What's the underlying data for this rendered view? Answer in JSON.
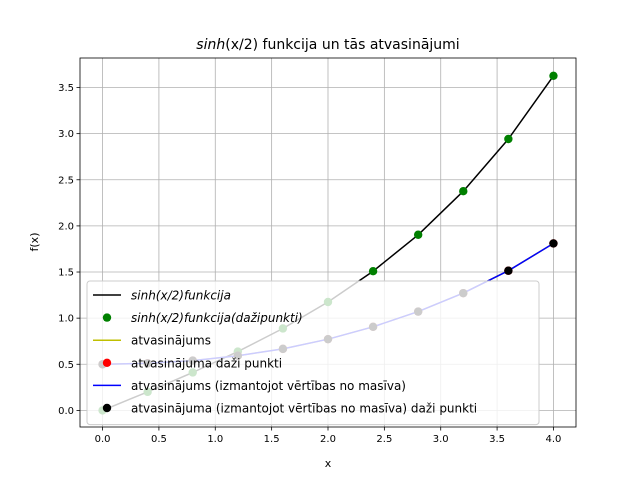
{
  "chart_data": {
    "type": "line",
    "title": {
      "func": "sinh",
      "arg": "(x/2)",
      "rest": " funkcija un tās atvasinājumi"
    },
    "xlabel": "x",
    "ylabel": "f(x)",
    "xlim": [
      -0.2,
      4.2
    ],
    "ylim": [
      -0.18,
      3.82
    ],
    "xticks": [
      "0.0",
      "0.5",
      "1.0",
      "1.5",
      "2.0",
      "2.5",
      "3.0",
      "3.5",
      "4.0"
    ],
    "yticks": [
      "0.0",
      "0.5",
      "1.0",
      "1.5",
      "2.0",
      "2.5",
      "3.0",
      "3.5"
    ],
    "grid": true,
    "legend_position": "lower-left",
    "colors": {
      "function": "#000000",
      "function_points": "#008000",
      "derivative": "#bfbf00",
      "derivative_points": "#ff0000",
      "array_derivative": "#0000ff",
      "array_derivative_points": "#000000"
    },
    "series": [
      {
        "key": "function",
        "kind": "line",
        "x": [
          0,
          0.4,
          0.8,
          1.2,
          1.6,
          2.0,
          2.4,
          2.8,
          3.2,
          3.6,
          4.0
        ],
        "y": [
          0,
          0.201,
          0.411,
          0.637,
          0.888,
          1.175,
          1.509,
          1.904,
          2.376,
          2.942,
          3.627
        ]
      },
      {
        "key": "function_points",
        "kind": "points",
        "x": [
          0,
          0.4,
          0.8,
          1.2,
          1.6,
          2.0,
          2.4,
          2.8,
          3.2,
          3.6,
          4.0
        ],
        "y": [
          0,
          0.201,
          0.411,
          0.637,
          0.888,
          1.175,
          1.509,
          1.904,
          2.376,
          2.942,
          3.627
        ]
      },
      {
        "key": "derivative",
        "kind": "line",
        "x": [
          0,
          0.4,
          0.8,
          1.2,
          1.6,
          2.0,
          2.4,
          2.8,
          3.2,
          3.6,
          4.0
        ],
        "y": [
          0.5,
          0.51,
          0.54,
          0.593,
          0.667,
          0.772,
          0.906,
          1.071,
          1.271,
          1.514,
          1.81
        ]
      },
      {
        "key": "derivative_points",
        "kind": "points",
        "x": [
          0,
          0.4,
          0.8,
          1.2,
          1.6,
          2.0,
          2.4,
          2.8,
          3.2,
          3.6,
          4.0
        ],
        "y": [
          0.5,
          0.51,
          0.54,
          0.593,
          0.667,
          0.772,
          0.906,
          1.071,
          1.271,
          1.514,
          1.81
        ]
      },
      {
        "key": "array_derivative",
        "kind": "line",
        "x": [
          0,
          0.4,
          0.8,
          1.2,
          1.6,
          2.0,
          2.4,
          2.8,
          3.2,
          3.6,
          4.0
        ],
        "y": [
          0.5,
          0.51,
          0.54,
          0.593,
          0.667,
          0.772,
          0.906,
          1.071,
          1.271,
          1.514,
          1.81
        ]
      },
      {
        "key": "array_derivative_points",
        "kind": "points",
        "x": [
          0,
          0.4,
          0.8,
          1.2,
          1.6,
          2.0,
          2.4,
          2.8,
          3.2,
          3.6,
          4.0
        ],
        "y": [
          0.5,
          0.51,
          0.54,
          0.593,
          0.667,
          0.772,
          0.906,
          1.071,
          1.271,
          1.514,
          1.81
        ]
      }
    ],
    "legend": [
      {
        "key": "function",
        "kind": "line",
        "name": "sinh(x/2)funkcija",
        "italic": true
      },
      {
        "key": "function_points",
        "kind": "points",
        "name": "sinh(x/2)funkcija(dažipunkti)",
        "italic": true
      },
      {
        "key": "derivative",
        "kind": "line",
        "name": "atvasinājums",
        "italic": false
      },
      {
        "key": "derivative_points",
        "kind": "points",
        "name": "atvasinājuma daži punkti",
        "italic": false
      },
      {
        "key": "array_derivative",
        "kind": "line",
        "name": "atvasinājums (izmantojot vērtības no masīva)",
        "italic": false
      },
      {
        "key": "array_derivative_points",
        "kind": "points",
        "name": "atvasinājuma (izmantojot vērtības no masīva) daži punkti",
        "italic": false
      }
    ]
  }
}
